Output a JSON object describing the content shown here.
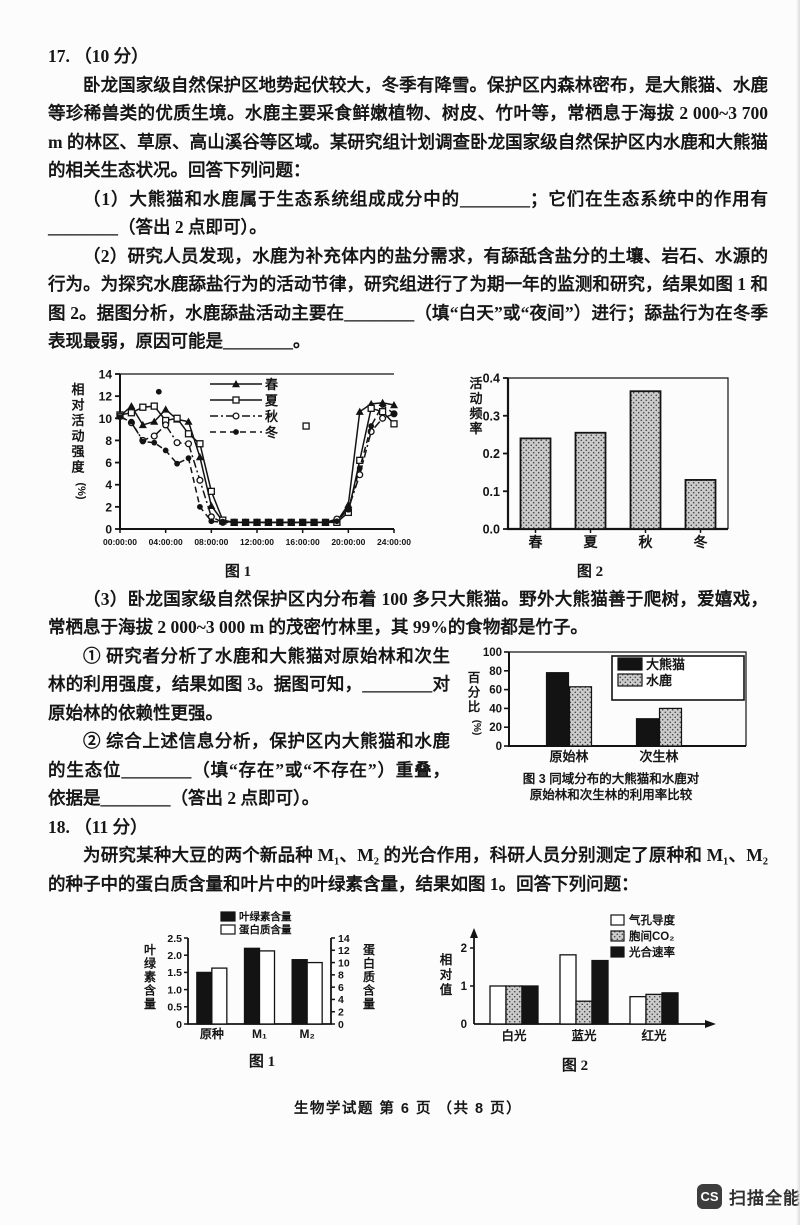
{
  "document": {
    "footer": "生物学试题  第 6 页 （共 8 页）",
    "watermark_icon": "CS",
    "watermark_text": "扫描全能王"
  },
  "q17": {
    "header": "17. （10 分）",
    "intro": "卧龙国家级自然保护区地势起伏较大，冬季有降雪。保护区内森林密布，是大熊猫、水鹿等珍稀兽类的优质生境。水鹿主要采食鲜嫩植物、树皮、竹叶等，常栖息于海拔 2 000~3 700 m 的林区、草原、高山溪谷等区域。某研究组计划调查卧龙国家级自然保护区内水鹿和大熊猫的相关生态状况。回答下列问题：",
    "p1": "（1）大熊猫和水鹿属于生态系统组成成分中的________；它们在生态系统中的作用有________（答出 2 点即可）。",
    "p2": "（2）研究人员发现，水鹿为补充体内的盐分需求，有舔舐含盐分的土壤、岩石、水源的行为。为探究水鹿舔盐行为的活动节律，研究组进行了为期一年的监测和研究，结果如图 1 和图 2。据图分析，水鹿舔盐活动主要在________（填“白天”或“夜间”）进行；舔盐行为在冬季表现最弱，原因可能是________。",
    "p3": "（3）卧龙国家级自然保护区内分布着 100 多只大熊猫。野外大熊猫善于爬树，爱嬉戏，常栖息于海拔 2 000~3 000 m 的茂密竹林里，其 99%的食物都是竹子。",
    "sub1": "① 研究者分析了水鹿和大熊猫对原始林和次生林的利用强度，结果如图 3。据图可知，________对原始林的依赖性更强。",
    "sub2": "② 综合上述信息分析，保护区内大熊猫和水鹿的生态位________（填“存在”或“不存在”）重叠，依据是________（答出 2 点即可）。"
  },
  "q18": {
    "header": "18. （11 分）",
    "intro": "为研究某种大豆的两个新品种 M₁、M₂ 的光合作用，科研人员分别测定了原种和 M₁、M₂ 的种子中的蛋白质含量和叶片中的叶绿素含量，结果如图 1。回答下列问题："
  },
  "chart_data": [
    {
      "id": "q17-fig1",
      "type": "line",
      "title": "图 1",
      "ylabel": "相对活动强度",
      "ylabel_unit": "(%)",
      "ylim": [
        0,
        14
      ],
      "yticks": [
        0,
        2,
        4,
        6,
        8,
        10,
        12,
        14
      ],
      "xticks": [
        "00:00:00",
        "04:00:00",
        "08:00:00",
        "12:00:00",
        "16:00:00",
        "20:00:00",
        "24:00:00"
      ],
      "x_unit": "hours 0-24, hourly points",
      "series": [
        {
          "name": "春",
          "marker": "tri",
          "line": "solid",
          "values": [
            10.2,
            11.1,
            9.4,
            9.7,
            10.8,
            9.9,
            9.7,
            6.5,
            2.1,
            0.7,
            0.6,
            0.6,
            0.6,
            0.6,
            0.6,
            0.6,
            0.6,
            0.6,
            0.6,
            0.7,
            2.2,
            10.6,
            11.3,
            11.4,
            11.2
          ]
        },
        {
          "name": "夏",
          "marker": "sq",
          "line": "solid",
          "values": [
            10.3,
            10.5,
            11.0,
            11.1,
            9.8,
            10.0,
            8.6,
            7.7,
            3.4,
            0.8,
            0.6,
            0.6,
            0.6,
            0.6,
            0.6,
            0.6,
            0.6,
            0.6,
            0.6,
            0.6,
            1.5,
            6.2,
            10.9,
            10.6,
            9.5
          ]
        },
        {
          "name": "秋",
          "marker": "co",
          "line": "dashdot",
          "values": [
            10.2,
            9.6,
            8.0,
            8.4,
            9.4,
            7.8,
            7.7,
            4.4,
            1.1,
            0.6,
            0.6,
            0.6,
            0.6,
            0.6,
            0.6,
            0.6,
            0.6,
            0.6,
            0.6,
            0.9,
            1.8,
            4.9,
            8.8,
            10.0,
            10.4
          ]
        },
        {
          "name": "冬",
          "marker": "cf",
          "line": "dashed",
          "values": [
            10.1,
            9.7,
            7.9,
            7.8,
            7.1,
            5.9,
            6.4,
            2.0,
            0.7,
            0.6,
            0.6,
            0.6,
            0.6,
            0.6,
            0.6,
            0.6,
            0.6,
            0.6,
            0.6,
            0.7,
            1.8,
            5.5,
            9.3,
            11.2,
            10.4
          ]
        }
      ],
      "stray_points": [
        {
          "x": 3.4,
          "y": 12.4,
          "marker": "cf"
        },
        {
          "x": 16.3,
          "y": 9.3,
          "marker": "sq"
        }
      ]
    },
    {
      "id": "q17-fig2",
      "type": "bar",
      "title": "图 2",
      "ylabel": "活动频率",
      "ylim": [
        0,
        0.4
      ],
      "yticks": [
        "0.0",
        "0.1",
        "0.2",
        "0.3",
        "0.4"
      ],
      "categories": [
        "春",
        "夏",
        "秋",
        "冬"
      ],
      "values": [
        0.24,
        0.255,
        0.365,
        0.13
      ]
    },
    {
      "id": "q17-fig3",
      "type": "bar",
      "title": "图 3",
      "caption1": "图 3  同域分布的大熊猫和水鹿对",
      "caption2": "原始林和次生林的利用率比较",
      "ylabel": "百分比",
      "ylabel_unit": "(%)",
      "ylim": [
        0,
        100
      ],
      "yticks": [
        0,
        20,
        40,
        60,
        80,
        100
      ],
      "categories": [
        "原始林",
        "次生林"
      ],
      "series": [
        {
          "name": "大熊猫",
          "fill": "black",
          "values": [
            78,
            29
          ]
        },
        {
          "name": "水鹿",
          "fill": "stipple",
          "values": [
            63,
            40
          ]
        }
      ],
      "legend_position": "top-right"
    },
    {
      "id": "q18-fig1",
      "type": "bar-dual-axis",
      "title": "图 1",
      "ylabel_left": "叶绿素含量",
      "ylabel_right": "蛋白质含量",
      "ylim_left": [
        0,
        2.5
      ],
      "yticks_left": [
        "0",
        "0.5",
        "1.0",
        "1.5",
        "2.0",
        "2.5"
      ],
      "ylim_right": [
        0,
        14
      ],
      "yticks_right": [
        0,
        2,
        4,
        6,
        8,
        10,
        12,
        14
      ],
      "categories": [
        "原种",
        "M₁",
        "M₂"
      ],
      "series": [
        {
          "name": "叶绿素含量",
          "fill": "black",
          "axis": "left",
          "values": [
            1.5,
            2.2,
            1.87
          ]
        },
        {
          "name": "蛋白质含量",
          "fill": "white",
          "axis": "right",
          "values": [
            9.1,
            11.9,
            10.0
          ]
        }
      ]
    },
    {
      "id": "q18-fig2",
      "type": "bar",
      "title": "图 2",
      "ylabel": "相对值",
      "ylim": [
        0,
        2.3
      ],
      "yticks": [
        0,
        1,
        2
      ],
      "categories": [
        "白光",
        "蓝光",
        "红光"
      ],
      "series": [
        {
          "name": "气孔导度",
          "fill": "white",
          "values": [
            1.0,
            1.82,
            0.72
          ]
        },
        {
          "name": "胞间CO₂",
          "fill": "stipple",
          "values": [
            1.0,
            0.6,
            0.78
          ]
        },
        {
          "name": "光合速率",
          "fill": "black",
          "values": [
            1.0,
            1.67,
            0.82
          ]
        }
      ],
      "legend_position": "top-right"
    }
  ]
}
